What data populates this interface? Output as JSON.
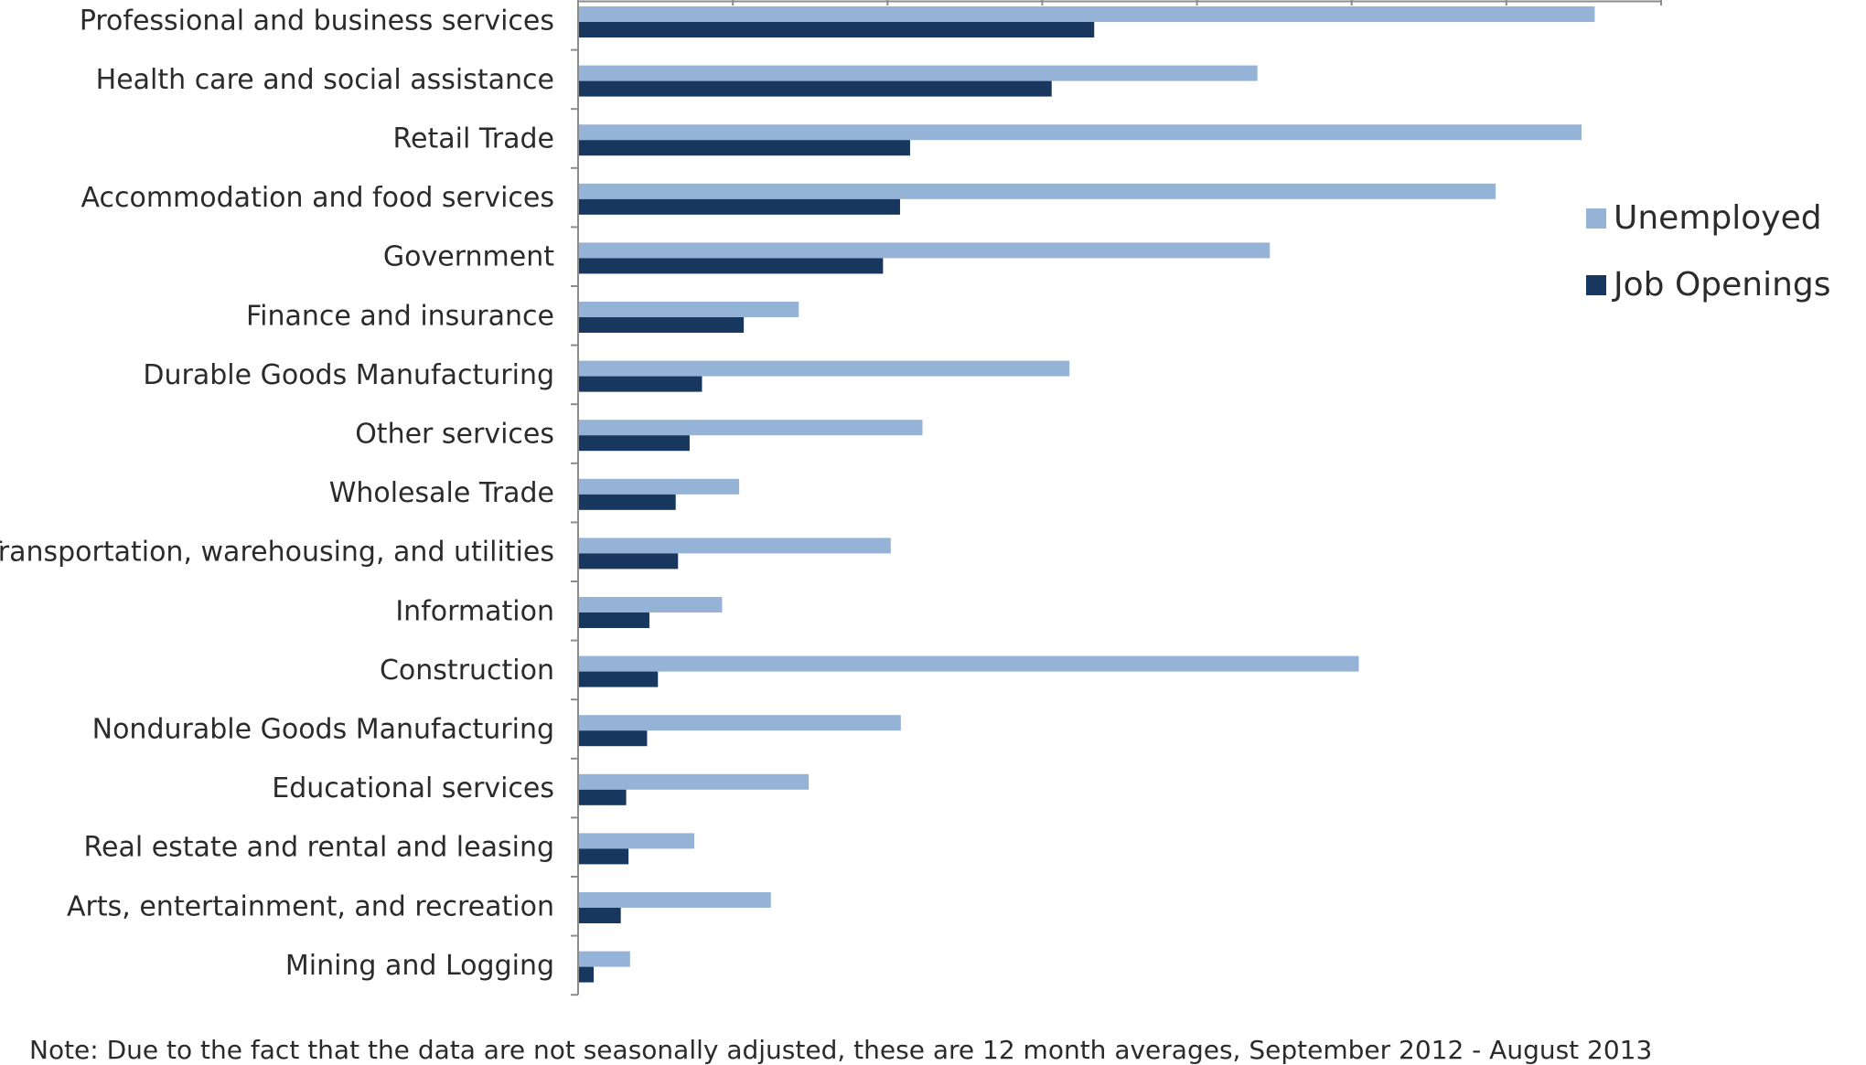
{
  "chart_data": {
    "type": "bar",
    "orientation": "horizontal",
    "categories": [
      "Professional and business services",
      "Health care and social assistance",
      "Retail Trade",
      "Accommodation and food services",
      "Government",
      "Finance and insurance",
      "Durable Goods Manufacturing",
      "Other services",
      "Wholesale Trade",
      "Transportation, warehousing, and utilities",
      "Information",
      "Construction",
      "Nondurable Goods Manufacturing",
      "Educational services",
      "Real estate and rental and leasing",
      "Arts, entertainment, and recreation",
      "Mining and Logging"
    ],
    "series": [
      {
        "name": "Unemployed",
        "color": "#95b3d7",
        "values": [
          1313,
          877,
          1296,
          1185,
          893,
          284,
          634,
          444,
          207,
          403,
          185,
          1008,
          416,
          297,
          149,
          248,
          66
        ]
      },
      {
        "name": "Job Openings",
        "color": "#17375e",
        "values": [
          666,
          611,
          428,
          415,
          393,
          213,
          159,
          143,
          125,
          128,
          91,
          102,
          88,
          61,
          64,
          54,
          19
        ]
      }
    ],
    "xlim": [
      0,
      1400
    ],
    "x_tick_step": 200,
    "legend_position": "right",
    "title": "",
    "xlabel": "",
    "ylabel": ""
  },
  "note": "Note: Due to the fact that the data are not seasonally adjusted, these are 12 month averages, September 2012 - August 2013"
}
